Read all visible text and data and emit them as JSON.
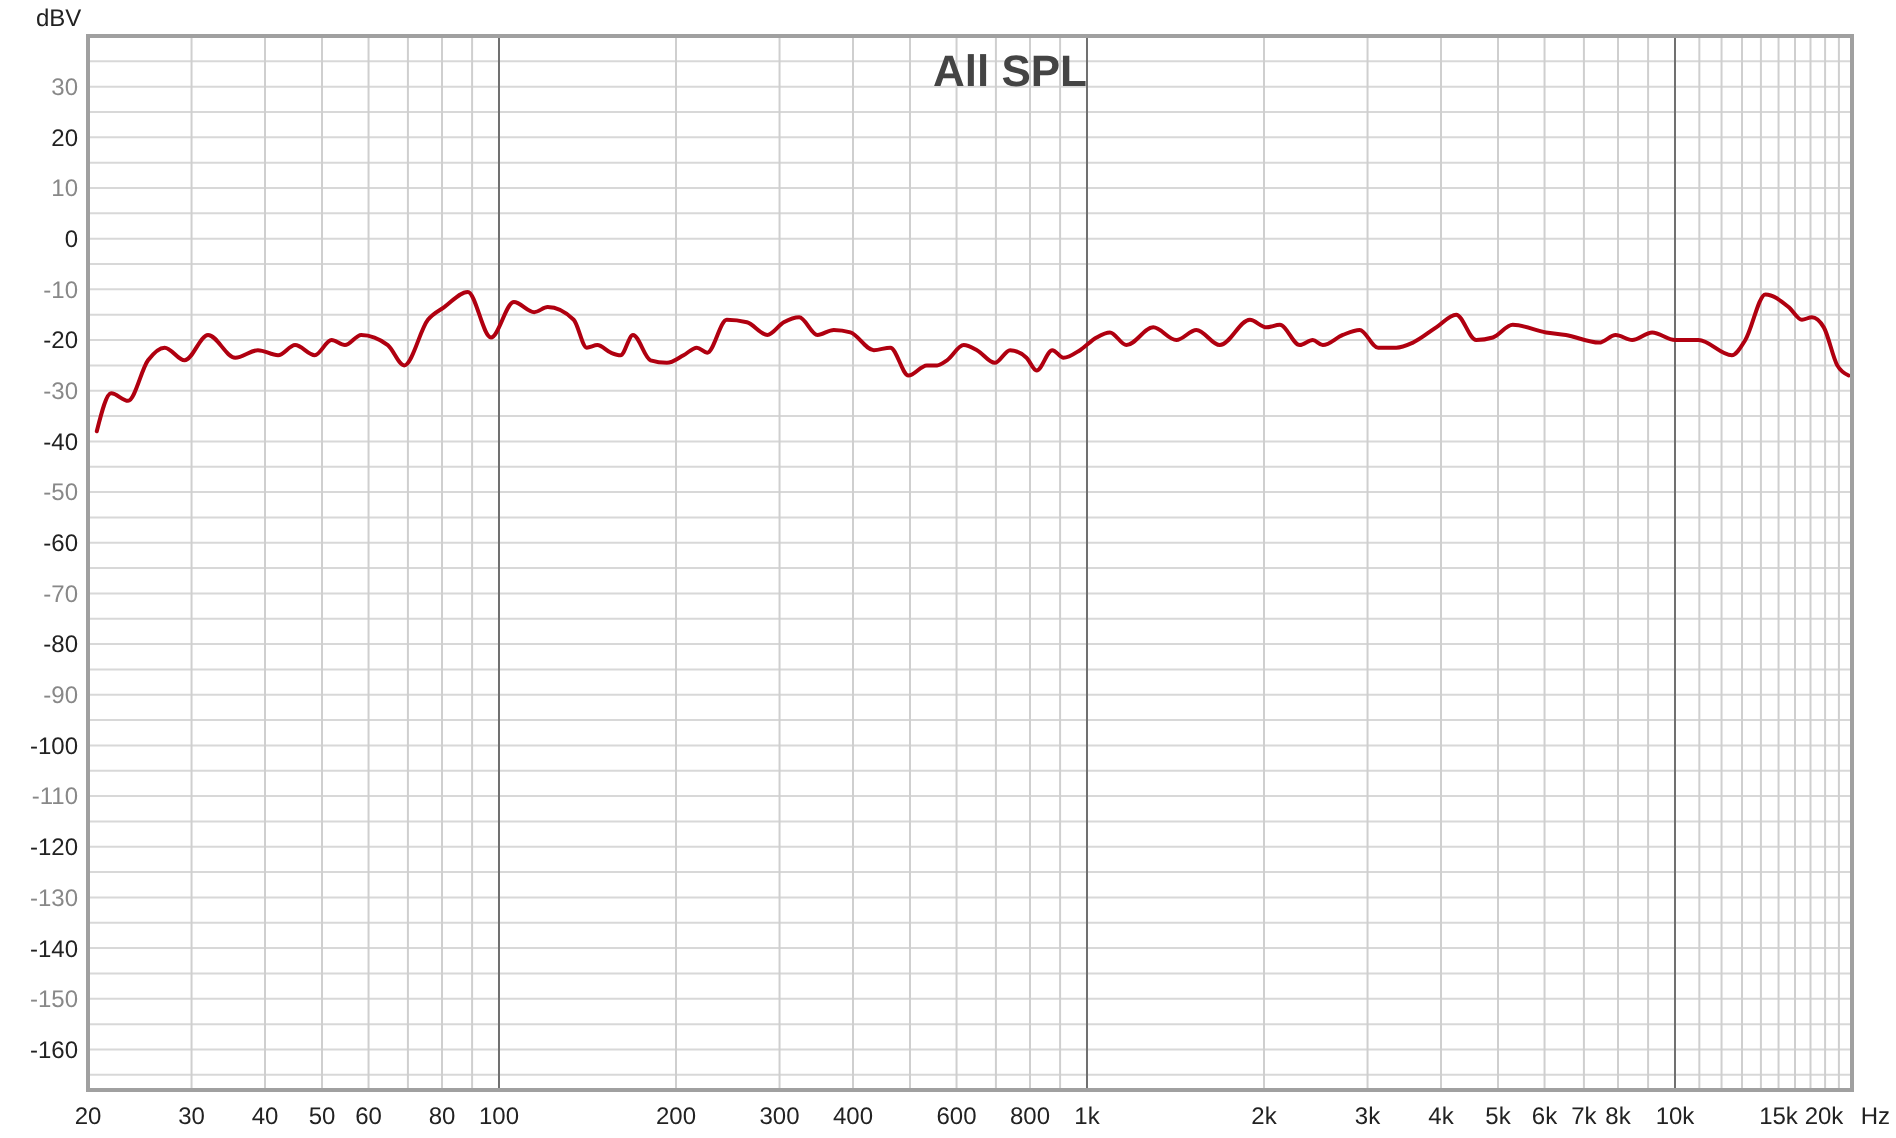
{
  "chart_data": {
    "type": "line",
    "title": "All SPL",
    "ylabel": "dBV",
    "xlabel": "Hz",
    "log": "x",
    "grid": true,
    "line_style": "solid",
    "marker": "none",
    "xlim": [
      20,
      20000
    ],
    "ylim": [
      -168,
      40
    ],
    "xticks": [
      20,
      30,
      40,
      50,
      60,
      {
        "value": 70,
        "label": null
      },
      80,
      {
        "value": 90,
        "label": null
      },
      100,
      200,
      300,
      400,
      {
        "value": 500,
        "label": null
      },
      600,
      {
        "value": 700,
        "label": null
      },
      800,
      {
        "value": 900,
        "label": null
      },
      {
        "value": 1000,
        "label": "1k"
      },
      {
        "value": 2000,
        "label": "2k"
      },
      {
        "value": 3000,
        "label": "3k"
      },
      {
        "value": 4000,
        "label": "4k"
      },
      {
        "value": 5000,
        "label": "5k"
      },
      {
        "value": 6000,
        "label": "6k"
      },
      {
        "value": 7000,
        "label": "7k"
      },
      {
        "value": 8000,
        "label": "8k"
      },
      {
        "value": 9000,
        "label": null
      },
      {
        "value": 10000,
        "label": "10k"
      },
      {
        "value": 11000,
        "label": null
      },
      {
        "value": 12000,
        "label": null
      },
      {
        "value": 13000,
        "label": null
      },
      {
        "value": 14000,
        "label": null
      },
      {
        "value": 15000,
        "label": "15k"
      },
      {
        "value": 16000,
        "label": null
      },
      {
        "value": 17000,
        "label": null
      },
      {
        "value": 18000,
        "label": null
      },
      {
        "value": 19000,
        "label": null
      },
      {
        "value": 20000,
        "label": "20k"
      }
    ],
    "yticks": [
      {
        "value": 35,
        "label": null
      },
      30,
      {
        "value": 25,
        "label": null
      },
      20,
      {
        "value": 15,
        "label": null
      },
      10,
      {
        "value": 5,
        "label": null
      },
      0,
      {
        "value": -5,
        "label": null
      },
      -10,
      {
        "value": -15,
        "label": null
      },
      -20,
      {
        "value": -25,
        "label": null
      },
      -30,
      {
        "value": -35,
        "label": null
      },
      -40,
      {
        "value": -45,
        "label": null
      },
      -50,
      {
        "value": -55,
        "label": null
      },
      -60,
      {
        "value": -65,
        "label": null
      },
      -70,
      {
        "value": -75,
        "label": null
      },
      -80,
      {
        "value": -85,
        "label": null
      },
      -90,
      {
        "value": -95,
        "label": null
      },
      -100,
      {
        "value": -105,
        "label": null
      },
      -110,
      {
        "value": -115,
        "label": null
      },
      -120,
      {
        "value": -125,
        "label": null
      },
      -130,
      {
        "value": -135,
        "label": null
      },
      -140,
      {
        "value": -145,
        "label": null
      },
      -150,
      {
        "value": -155,
        "label": null
      },
      -160,
      {
        "value": -165,
        "label": null
      }
    ],
    "series": [
      {
        "color": "#b00010",
        "x": [
          20.7,
          21.9,
          23.4,
          25.3,
          27,
          29.2,
          32,
          35.6,
          38.9,
          42.1,
          45,
          48.6,
          51.9,
          54.7,
          58.3,
          64.7,
          69,
          75.7,
          80.7,
          88.5,
          96.9,
          106,
          114.8,
          121,
          134,
          141,
          147,
          155,
          161,
          169,
          181,
          193,
          206,
          217,
          226,
          244,
          264,
          286,
          305,
          324,
          348,
          371,
          396,
          434,
          463,
          497,
          534,
          556,
          578,
          617,
          650,
          697,
          740,
          789,
          821,
          873,
          912,
          973,
          1038,
          1094,
          1167,
          1296,
          1419,
          1535,
          1682,
          1892,
          2019,
          2128,
          2301,
          2421,
          2518,
          2723,
          2909,
          3127,
          3357,
          3583,
          3926,
          4245,
          4590,
          4901,
          5297,
          6034,
          6522,
          7430,
          7927,
          8457,
          9145,
          10000,
          10960,
          12490,
          13170,
          14250,
          15610,
          16440,
          17090,
          17910,
          18880,
          19740
        ],
        "values": [
          -38,
          -30.5,
          -32,
          -24,
          -21.5,
          -24,
          -19,
          -23.5,
          -22,
          -23,
          -21,
          -23,
          -20,
          -21,
          -19,
          -21,
          -25,
          -16,
          -13.5,
          -10.5,
          -19.5,
          -12.5,
          -14.5,
          -13.5,
          -16,
          -21.5,
          -21,
          -22.5,
          -23,
          -19,
          -24,
          -24.5,
          -23,
          -21.5,
          -22.5,
          -16,
          -16.5,
          -19,
          -16.5,
          -15.5,
          -19,
          -18,
          -18.5,
          -22,
          -21.5,
          -27,
          -25,
          -25,
          -24,
          -21,
          -22,
          -24.5,
          -22,
          -23.5,
          -26,
          -22,
          -23.5,
          -22,
          -19.5,
          -18.5,
          -21,
          -17.5,
          -20,
          -18,
          -21,
          -16,
          -17.5,
          -17,
          -21,
          -20,
          -21,
          -19,
          -18,
          -21.5,
          -21.5,
          -20.5,
          -17.5,
          -15,
          -20,
          -19.5,
          -17,
          -18.5,
          -19,
          -20.5,
          -19,
          -20,
          -18.5,
          -20,
          -20,
          -23,
          -20,
          -11,
          -13.5,
          -16,
          -15.5,
          -17.5,
          -25,
          -27
        ]
      }
    ]
  }
}
